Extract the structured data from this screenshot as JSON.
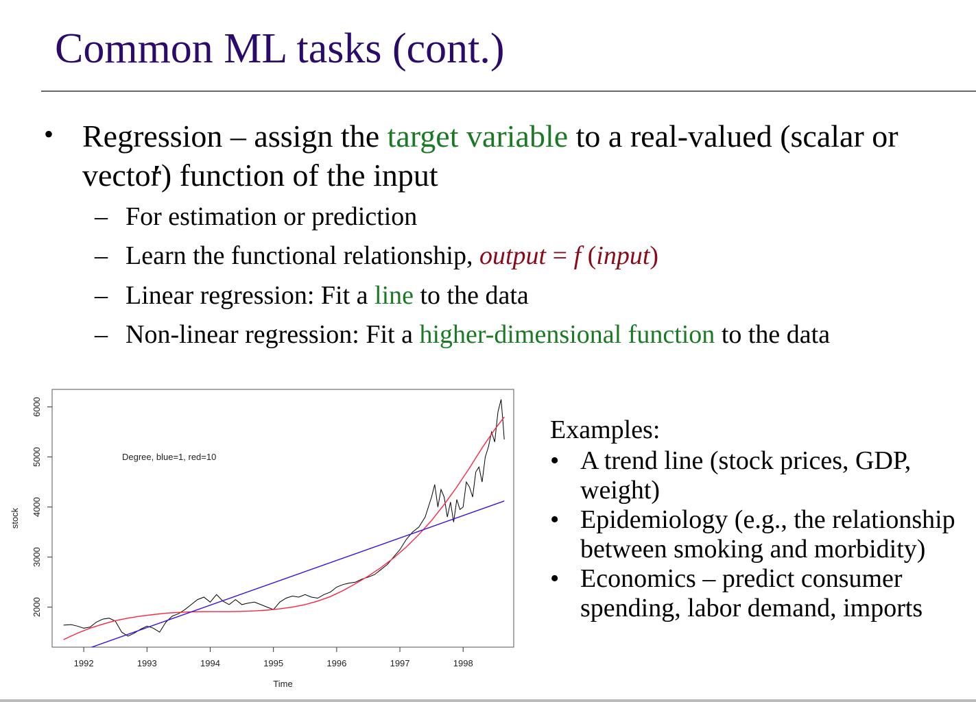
{
  "slide": {
    "title": "Common ML tasks (cont.)",
    "bullet": {
      "part1": "Regression – assign the ",
      "highlight": "target variable",
      "part2": " to a real-valued (scalar or vector) function of the input"
    },
    "subs": [
      {
        "text": "For estimation or prediction"
      },
      {
        "pre": "Learn the functional relationship, ",
        "expr_a": "output",
        "expr_eq": " = ",
        "expr_f": "f",
        "expr_paren_open": " (",
        "expr_b": "input",
        "expr_paren_close": ")"
      },
      {
        "pre": "Linear regression: Fit a ",
        "hl": "line",
        "post": " to the data"
      },
      {
        "pre": "Non-linear regression: Fit a ",
        "hl": "higher-dimensional function",
        "post": " to the data"
      }
    ],
    "examples": {
      "heading": "Examples:",
      "items": [
        "A trend line (stock prices, GDP, weight)",
        "Epidemiology (e.g., the relationship between smoking and morbidity)",
        "Economics – predict consumer spending, labor demand, imports"
      ]
    },
    "bullet_char": "•",
    "dash_char": "–"
  },
  "chart_data": {
    "type": "line",
    "xlabel": "Time",
    "ylabel": "stock",
    "legend_text": "Degree, blue=1, red=10",
    "xticks": [
      1992,
      1993,
      1994,
      1995,
      1996,
      1997,
      1998
    ],
    "yticks": [
      2000,
      3000,
      4000,
      5000,
      6000
    ],
    "xlim": [
      1991.5,
      1998.8
    ],
    "ylim": [
      1200,
      6350
    ],
    "series": [
      {
        "color": "#000000",
        "x": [
          1991.68,
          1991.8,
          1991.9,
          1992.0,
          1992.1,
          1992.2,
          1992.3,
          1992.4,
          1992.5,
          1992.6,
          1992.7,
          1992.8,
          1992.9,
          1993.0,
          1993.1,
          1993.2,
          1993.3,
          1993.4,
          1993.5,
          1993.6,
          1993.7,
          1993.8,
          1993.9,
          1994.0,
          1994.1,
          1994.2,
          1994.3,
          1994.4,
          1994.5,
          1994.6,
          1994.7,
          1994.8,
          1994.9,
          1995.0,
          1995.1,
          1995.2,
          1995.3,
          1995.4,
          1995.5,
          1995.6,
          1995.7,
          1995.8,
          1995.9,
          1996.0,
          1996.1,
          1996.2,
          1996.3,
          1996.4,
          1996.5,
          1996.6,
          1996.7,
          1996.8,
          1996.9,
          1997.0,
          1997.1,
          1997.2,
          1997.3,
          1997.4,
          1997.5,
          1997.55,
          1997.6,
          1997.65,
          1997.7,
          1997.75,
          1997.8,
          1997.85,
          1997.9,
          1997.95,
          1998.0,
          1998.05,
          1998.1,
          1998.15,
          1998.2,
          1998.25,
          1998.3,
          1998.35,
          1998.4,
          1998.45,
          1998.5,
          1998.55,
          1998.6,
          1998.63,
          1998.65
        ],
        "y": [
          1640,
          1650,
          1620,
          1580,
          1600,
          1700,
          1760,
          1780,
          1720,
          1500,
          1420,
          1480,
          1560,
          1620,
          1580,
          1500,
          1700,
          1820,
          1870,
          1950,
          2050,
          2150,
          2200,
          2100,
          2250,
          2120,
          2050,
          2150,
          2050,
          2080,
          2100,
          2050,
          2000,
          1950,
          2100,
          2180,
          2220,
          2200,
          2250,
          2200,
          2180,
          2250,
          2300,
          2400,
          2450,
          2480,
          2500,
          2560,
          2600,
          2650,
          2750,
          2850,
          3000,
          3150,
          3350,
          3500,
          3600,
          3800,
          4200,
          4450,
          4000,
          4350,
          4200,
          3800,
          4100,
          3700,
          4150,
          3950,
          4000,
          4500,
          4400,
          4200,
          4700,
          4800,
          4500,
          5000,
          5200,
          5500,
          5300,
          5900,
          6150,
          5700,
          5350
        ]
      },
      {
        "color": "#ff2244",
        "x": [
          1991.68,
          1991.9,
          1992.1,
          1992.3,
          1992.5,
          1992.7,
          1992.9,
          1993.1,
          1993.3,
          1993.5,
          1993.7,
          1993.9,
          1994.1,
          1994.3,
          1994.5,
          1994.7,
          1994.9,
          1995.1,
          1995.3,
          1995.5,
          1995.7,
          1995.9,
          1996.1,
          1996.3,
          1996.5,
          1996.7,
          1996.9,
          1997.1,
          1997.3,
          1997.5,
          1997.7,
          1997.9,
          1998.1,
          1998.3,
          1998.5,
          1998.65
        ],
        "y": [
          1350,
          1480,
          1580,
          1660,
          1730,
          1780,
          1820,
          1850,
          1880,
          1895,
          1905,
          1910,
          1910,
          1910,
          1915,
          1925,
          1940,
          1965,
          2000,
          2050,
          2120,
          2210,
          2330,
          2470,
          2620,
          2790,
          2980,
          3200,
          3450,
          3730,
          4050,
          4400,
          4780,
          5180,
          5550,
          5800
        ]
      },
      {
        "color": "#3a10e8",
        "x": [
          1991.68,
          1998.65
        ],
        "y": [
          1000,
          4120
        ]
      }
    ]
  }
}
